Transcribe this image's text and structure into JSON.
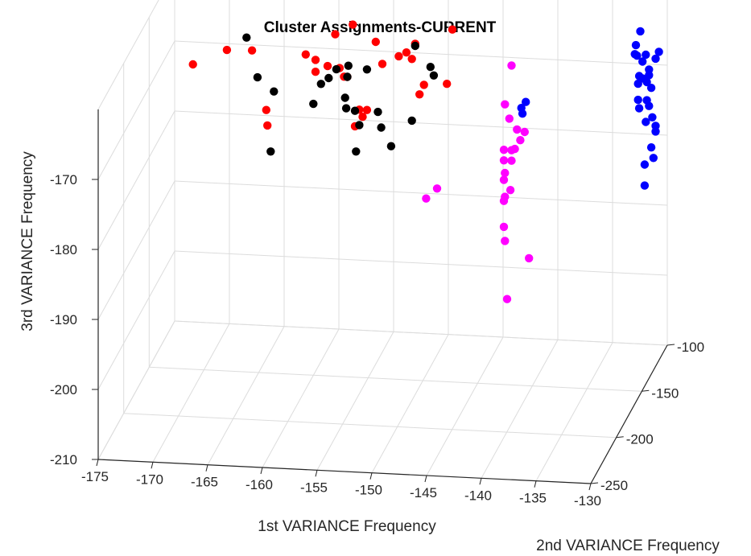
{
  "chart_data": {
    "type": "scatter",
    "title": "Cluster Assignments-CURRENT",
    "xlabel": "1st VARIANCE Frequency",
    "ylabel": "2nd VARIANCE Frequency",
    "zlabel": "3rd VARIANCE Frequency",
    "xlim": [
      -175,
      -130
    ],
    "ylim": [
      -250,
      -100
    ],
    "zlim": [
      -210,
      -160
    ],
    "xticks": [
      "-175",
      "-170",
      "-165",
      "-160",
      "-155",
      "-150",
      "-145",
      "-140",
      "-135",
      "-130"
    ],
    "yticks": [
      "-100",
      "-150",
      "-200",
      "-250"
    ],
    "zticks": [
      "-170",
      "-180",
      "-190",
      "-200",
      "-210"
    ],
    "grid": true,
    "colors": {
      "axis": "#262626",
      "grid": "#dcdcdc"
    },
    "series": [
      {
        "color": "#ff0000",
        "points": [
          [
            -172.4,
            -120,
            -170.5
          ],
          [
            -169.3,
            -120,
            -168.2
          ],
          [
            -167.0,
            -120,
            -168.1
          ],
          [
            -165.7,
            -120,
            -176.5
          ],
          [
            -165.6,
            -120,
            -178.7
          ],
          [
            -162.1,
            -120,
            -168.3
          ],
          [
            -161.2,
            -120,
            -169.0
          ],
          [
            -161.2,
            -120,
            -170.7
          ],
          [
            -160.1,
            -120,
            -169.8
          ],
          [
            -159.4,
            -120,
            -165.2
          ],
          [
            -159.0,
            -120,
            -170.0
          ],
          [
            -158.6,
            -120,
            -171.2
          ],
          [
            -158.3,
            -120,
            -171.2
          ],
          [
            -157.8,
            -120,
            -163.7
          ],
          [
            -157.6,
            -120,
            -178.2
          ],
          [
            -157.2,
            -120,
            -175.8
          ],
          [
            -156.9,
            -120,
            -176.8
          ],
          [
            -156.5,
            -120,
            -175.8
          ],
          [
            -155.7,
            -120,
            -166.0
          ],
          [
            -155.1,
            -120,
            -169.1
          ],
          [
            -153.6,
            -120,
            -167.9
          ],
          [
            -152.9,
            -120,
            -167.3
          ],
          [
            -152.4,
            -120,
            -168.2
          ],
          [
            -152.1,
            -120,
            -166.0
          ],
          [
            -151.7,
            -120,
            -173.2
          ],
          [
            -151.3,
            -120,
            -171.8
          ],
          [
            -149.2,
            -120,
            -171.5
          ],
          [
            -148.7,
            -120,
            -163.7
          ]
        ]
      },
      {
        "color": "#000000",
        "points": [
          [
            -167.5,
            -120,
            -166.3
          ],
          [
            -166.5,
            -120,
            -171.9
          ],
          [
            -165.3,
            -120,
            -182.4
          ],
          [
            -165.0,
            -120,
            -173.8
          ],
          [
            -161.4,
            -120,
            -175.3
          ],
          [
            -160.7,
            -120,
            -172.4
          ],
          [
            -160.0,
            -120,
            -171.5
          ],
          [
            -159.3,
            -120,
            -170.2
          ],
          [
            -158.5,
            -120,
            -174.2
          ],
          [
            -158.4,
            -120,
            -175.7
          ],
          [
            -158.3,
            -120,
            -171.2
          ],
          [
            -158.2,
            -120,
            -169.6
          ],
          [
            -157.6,
            -120,
            -176.0
          ],
          [
            -157.5,
            -120,
            -181.8
          ],
          [
            -157.2,
            -120,
            -178.0
          ],
          [
            -156.5,
            -120,
            -170.0
          ],
          [
            -155.5,
            -120,
            -176.0
          ],
          [
            -155.2,
            -120,
            -178.2
          ],
          [
            -154.3,
            -120,
            -180.8
          ],
          [
            -152.4,
            -120,
            -177.0
          ],
          [
            -152.1,
            -120,
            -166.3
          ],
          [
            -150.7,
            -120,
            -169.2
          ],
          [
            -150.4,
            -120,
            -170.4
          ]
        ]
      },
      {
        "color": "#ff00ff",
        "points": [
          [
            -142.6,
            -135,
            -166.4
          ],
          [
            -143.2,
            -135,
            -172.0
          ],
          [
            -142.8,
            -135,
            -174.0
          ],
          [
            -142.1,
            -135,
            -175.5
          ],
          [
            -141.4,
            -135,
            -175.8
          ],
          [
            -141.8,
            -135,
            -177.0
          ],
          [
            -142.3,
            -135,
            -178.3
          ],
          [
            -142.6,
            -135,
            -178.5
          ],
          [
            -143.3,
            -135,
            -178.5
          ],
          [
            -143.3,
            -135,
            -180.0
          ],
          [
            -142.6,
            -135,
            -180.0
          ],
          [
            -143.2,
            -135,
            -181.8
          ],
          [
            -143.3,
            -135,
            -182.8
          ],
          [
            -142.7,
            -135,
            -184.2
          ],
          [
            -143.2,
            -135,
            -185.2
          ],
          [
            -143.3,
            -135,
            -185.8
          ],
          [
            -143.3,
            -135,
            -189.5
          ],
          [
            -143.2,
            -135,
            -191.5
          ],
          [
            -141.0,
            -135,
            -193.8
          ],
          [
            -143.0,
            -135,
            -199.8
          ],
          [
            -150.4,
            -135,
            -186.0
          ],
          [
            -149.4,
            -135,
            -184.5
          ]
        ]
      },
      {
        "color": "#0000ff",
        "points": [
          [
            -141.3,
            -135,
            -171.5
          ],
          [
            -141.7,
            -135,
            -172.4
          ],
          [
            -141.6,
            -135,
            -173.2
          ],
          [
            -132.0,
            -110,
            -164.0
          ],
          [
            -132.4,
            -110,
            -166.0
          ],
          [
            -132.5,
            -110,
            -167.3
          ],
          [
            -132.3,
            -110,
            -167.5
          ],
          [
            -130.3,
            -110,
            -166.8
          ],
          [
            -130.6,
            -110,
            -167.8
          ],
          [
            -131.5,
            -110,
            -167.3
          ],
          [
            -131.8,
            -110,
            -168.3
          ],
          [
            -131.2,
            -110,
            -169.4
          ],
          [
            -131.2,
            -110,
            -170.2
          ],
          [
            -131.8,
            -110,
            -170.7
          ],
          [
            -132.1,
            -110,
            -170.4
          ],
          [
            -131.4,
            -110,
            -171.2
          ],
          [
            -132.2,
            -110,
            -171.5
          ],
          [
            -131.0,
            -110,
            -172.0
          ],
          [
            -131.4,
            -110,
            -173.8
          ],
          [
            -132.2,
            -110,
            -173.8
          ],
          [
            -131.2,
            -110,
            -174.6
          ],
          [
            -132.1,
            -110,
            -175.0
          ],
          [
            -130.9,
            -110,
            -176.2
          ],
          [
            -131.5,
            -110,
            -176.9
          ],
          [
            -130.6,
            -110,
            -177.4
          ],
          [
            -130.6,
            -110,
            -178.2
          ],
          [
            -131.0,
            -110,
            -180.5
          ],
          [
            -130.8,
            -110,
            -182.0
          ],
          [
            -131.6,
            -110,
            -183.0
          ],
          [
            -131.6,
            -110,
            -186.0
          ]
        ]
      }
    ]
  }
}
